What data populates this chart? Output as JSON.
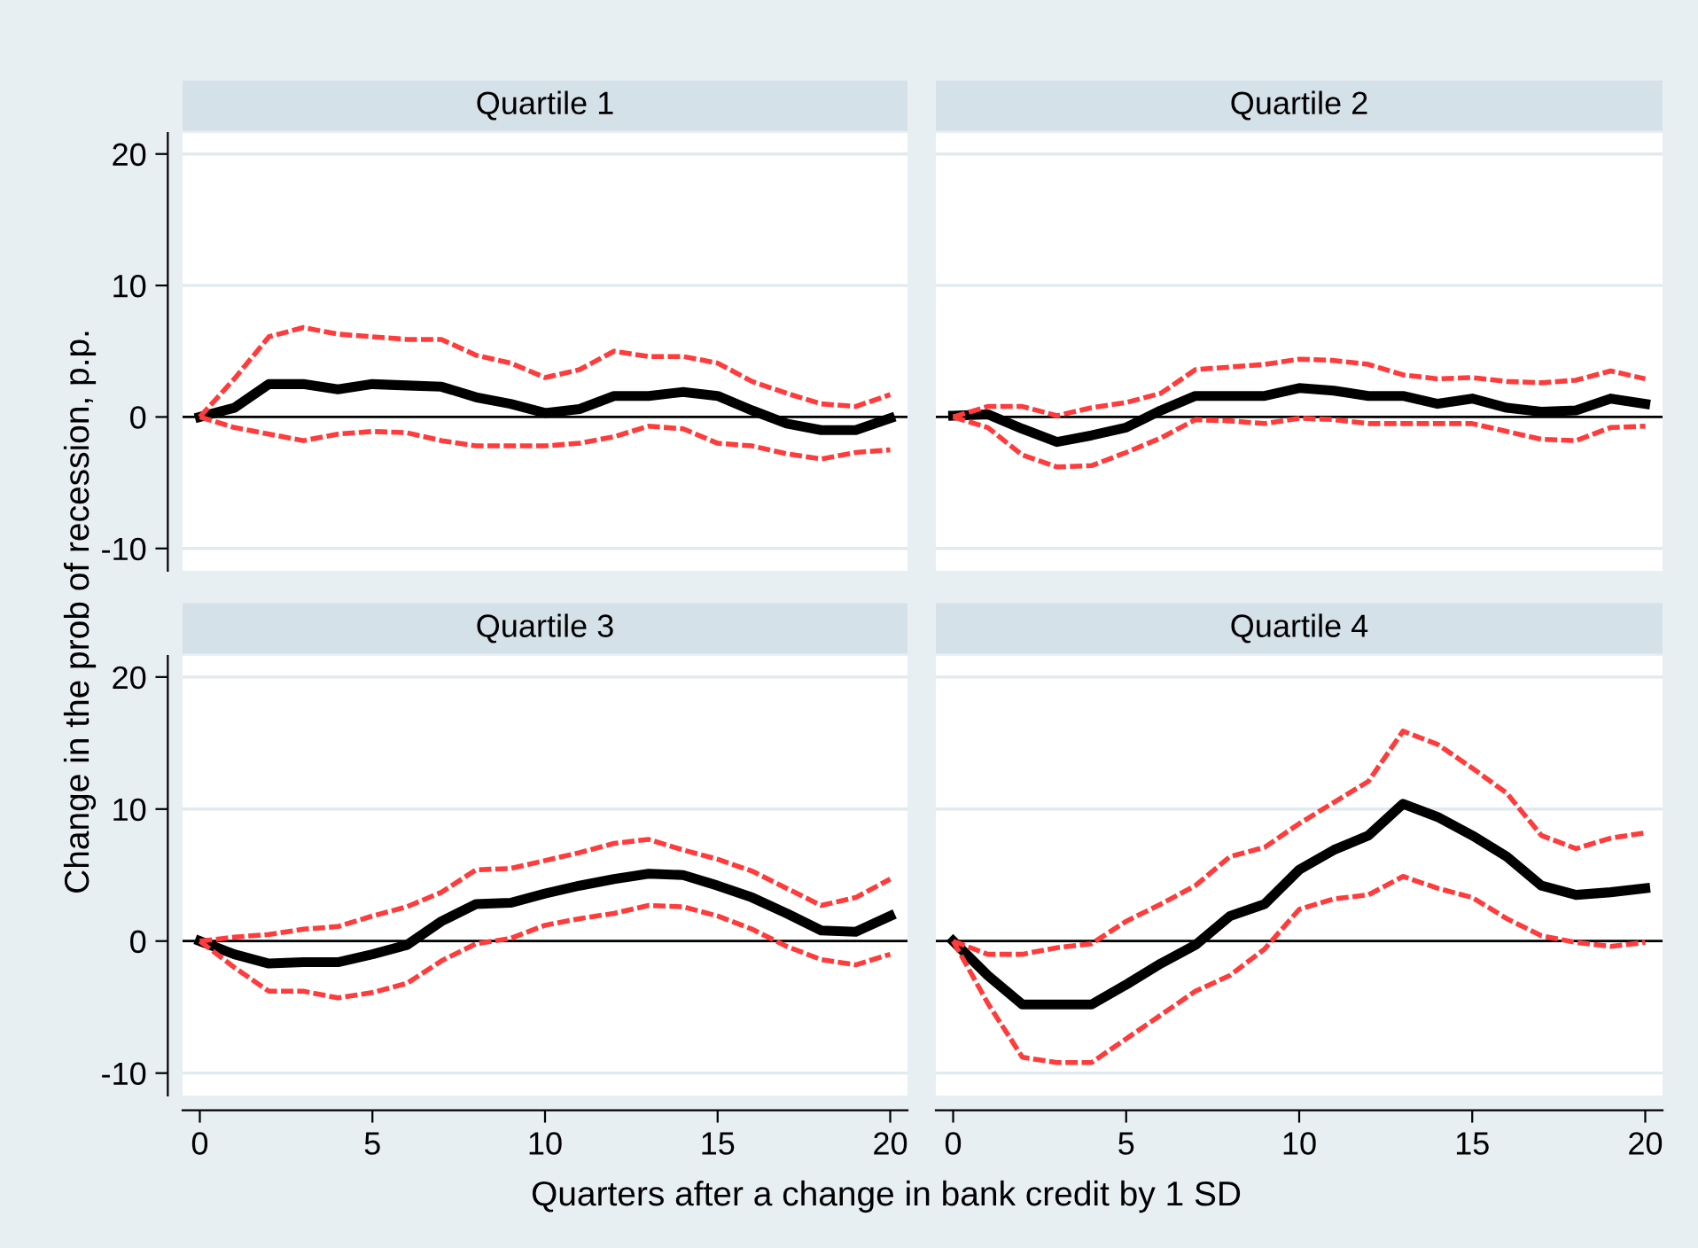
{
  "chart_data": [
    {
      "type": "line",
      "title": "Quartile 1",
      "ylabel": "Change in the prob of recession, p.p.",
      "x": [
        0,
        1,
        2,
        3,
        4,
        5,
        6,
        7,
        8,
        9,
        10,
        11,
        12,
        13,
        14,
        15,
        16,
        17,
        18,
        19,
        20
      ],
      "xlim": [
        -0.5,
        20.5
      ],
      "xticks": [
        0,
        5,
        10,
        15,
        20
      ],
      "ylim": [
        -11.7,
        21.6
      ],
      "yticks": [
        -10,
        0,
        10,
        20
      ],
      "grid": "y",
      "tick_labels": "y",
      "ref_lines": [
        {
          "axis": "y",
          "value": 0,
          "color": "#000000"
        }
      ],
      "series": [
        {
          "color": "#ff3b3b",
          "line_style": "dashed",
          "values": [
            0,
            2.9,
            6.1,
            6.8,
            6.3,
            6.1,
            5.9,
            5.9,
            4.7,
            4.1,
            3.0,
            3.6,
            5.0,
            4.6,
            4.6,
            4.1,
            2.7,
            1.8,
            1.0,
            0.8,
            1.7
          ]
        },
        {
          "color": "#ff3b3b",
          "line_style": "dashed",
          "values": [
            0,
            -0.8,
            -1.3,
            -1.8,
            -1.3,
            -1.1,
            -1.2,
            -1.8,
            -2.2,
            -2.2,
            -2.2,
            -2.0,
            -1.5,
            -0.7,
            -0.9,
            -2.0,
            -2.2,
            -2.8,
            -3.2,
            -2.7,
            -2.5
          ]
        },
        {
          "color": "#000000",
          "line_style": "solid",
          "values": [
            0,
            0.7,
            2.5,
            2.5,
            2.1,
            2.5,
            2.4,
            2.3,
            1.5,
            1.0,
            0.3,
            0.6,
            1.6,
            1.6,
            1.9,
            1.6,
            0.5,
            -0.5,
            -1.0,
            -1.0,
            -0.1
          ]
        }
      ]
    },
    {
      "type": "line",
      "title": "Quartile 2",
      "x": [
        0,
        1,
        2,
        3,
        4,
        5,
        6,
        7,
        8,
        9,
        10,
        11,
        12,
        13,
        14,
        15,
        16,
        17,
        18,
        19,
        20
      ],
      "xlim": [
        -0.5,
        20.5
      ],
      "xticks": [
        0,
        5,
        10,
        15,
        20
      ],
      "ylim": [
        -11.7,
        21.6
      ],
      "yticks": [
        -10,
        0,
        10,
        20
      ],
      "grid": "y",
      "tick_labels": false,
      "ref_lines": [
        {
          "axis": "y",
          "value": 0,
          "color": "#000000"
        }
      ],
      "series": [
        {
          "color": "#ff3b3b",
          "line_style": "dashed",
          "values": [
            0,
            0.8,
            0.8,
            0.1,
            0.7,
            1.1,
            1.8,
            3.6,
            3.8,
            4.0,
            4.4,
            4.3,
            4.0,
            3.2,
            2.9,
            3.0,
            2.7,
            2.6,
            2.8,
            3.5,
            2.9
          ]
        },
        {
          "color": "#ff3b3b",
          "line_style": "dashed",
          "values": [
            0,
            -0.8,
            -2.9,
            -3.8,
            -3.7,
            -2.7,
            -1.6,
            -0.2,
            -0.3,
            -0.5,
            -0.1,
            -0.2,
            -0.5,
            -0.5,
            -0.5,
            -0.5,
            -1.1,
            -1.7,
            -1.8,
            -0.8,
            -0.7
          ]
        },
        {
          "color": "#000000",
          "line_style": "solid",
          "values": [
            0.1,
            0.2,
            -0.9,
            -1.9,
            -1.4,
            -0.8,
            0.5,
            1.6,
            1.6,
            1.6,
            2.2,
            2.0,
            1.6,
            1.6,
            1.0,
            1.4,
            0.7,
            0.4,
            0.5,
            1.4,
            1.0
          ]
        }
      ]
    },
    {
      "type": "line",
      "title": "Quartile 3",
      "xlabel": "Quarters after a change in bank credit by 1 SD",
      "x": [
        0,
        1,
        2,
        3,
        4,
        5,
        6,
        7,
        8,
        9,
        10,
        11,
        12,
        13,
        14,
        15,
        16,
        17,
        18,
        19,
        20
      ],
      "xlim": [
        -0.5,
        20.5
      ],
      "xticks": [
        0,
        5,
        10,
        15,
        20
      ],
      "ylim": [
        -11.7,
        21.6
      ],
      "yticks": [
        -10,
        0,
        10,
        20
      ],
      "grid": "y",
      "ref_lines": [
        {
          "axis": "y",
          "value": 0,
          "color": "#000000"
        }
      ],
      "series": [
        {
          "color": "#ff3b3b",
          "line_style": "dashed",
          "values": [
            0,
            0.3,
            0.5,
            0.9,
            1.1,
            1.9,
            2.6,
            3.7,
            5.4,
            5.5,
            6.1,
            6.7,
            7.4,
            7.7,
            6.9,
            6.2,
            5.3,
            4.0,
            2.7,
            3.3,
            4.7
          ]
        },
        {
          "color": "#ff3b3b",
          "line_style": "dashed",
          "values": [
            0,
            -2.0,
            -3.8,
            -3.8,
            -4.3,
            -3.9,
            -3.2,
            -1.5,
            -0.2,
            0.2,
            1.2,
            1.7,
            2.1,
            2.7,
            2.6,
            1.9,
            0.9,
            -0.4,
            -1.4,
            -1.8,
            -1.0
          ]
        },
        {
          "color": "#000000",
          "line_style": "solid",
          "values": [
            0,
            -1.0,
            -1.7,
            -1.6,
            -1.6,
            -1.0,
            -0.3,
            1.5,
            2.8,
            2.9,
            3.6,
            4.2,
            4.7,
            5.1,
            5.0,
            4.2,
            3.3,
            2.1,
            0.8,
            0.7,
            1.9
          ]
        }
      ]
    },
    {
      "type": "line",
      "title": "Quartile 4",
      "x": [
        0,
        1,
        2,
        3,
        4,
        5,
        6,
        7,
        8,
        9,
        10,
        11,
        12,
        13,
        14,
        15,
        16,
        17,
        18,
        19,
        20
      ],
      "xlim": [
        -0.5,
        20.5
      ],
      "xticks": [
        0,
        5,
        10,
        15,
        20
      ],
      "ylim": [
        -11.7,
        21.6
      ],
      "yticks": [
        -10,
        0,
        10,
        20
      ],
      "grid": "y",
      "tick_labels": "x",
      "ref_lines": [
        {
          "axis": "y",
          "value": 0,
          "color": "#000000"
        }
      ],
      "series": [
        {
          "color": "#ff3b3b",
          "line_style": "dashed",
          "values": [
            0,
            -1.0,
            -1.0,
            -0.5,
            -0.2,
            1.5,
            2.8,
            4.2,
            6.4,
            7.1,
            8.9,
            10.5,
            12.1,
            15.9,
            14.9,
            13.1,
            11.2,
            8.0,
            7.0,
            7.8,
            8.2
          ]
        },
        {
          "color": "#ff3b3b",
          "line_style": "dashed",
          "values": [
            0,
            -4.7,
            -8.8,
            -9.2,
            -9.2,
            -7.4,
            -5.6,
            -3.8,
            -2.6,
            -0.6,
            2.4,
            3.2,
            3.5,
            4.9,
            4.0,
            3.3,
            1.7,
            0.4,
            -0.1,
            -0.4,
            -0.1
          ]
        },
        {
          "color": "#000000",
          "line_style": "solid",
          "values": [
            0,
            -2.6,
            -4.8,
            -4.8,
            -4.8,
            -3.3,
            -1.7,
            -0.3,
            1.9,
            2.8,
            5.4,
            6.9,
            8.0,
            10.4,
            9.4,
            8.0,
            6.4,
            4.2,
            3.5,
            3.7,
            4.0
          ]
        }
      ]
    }
  ]
}
